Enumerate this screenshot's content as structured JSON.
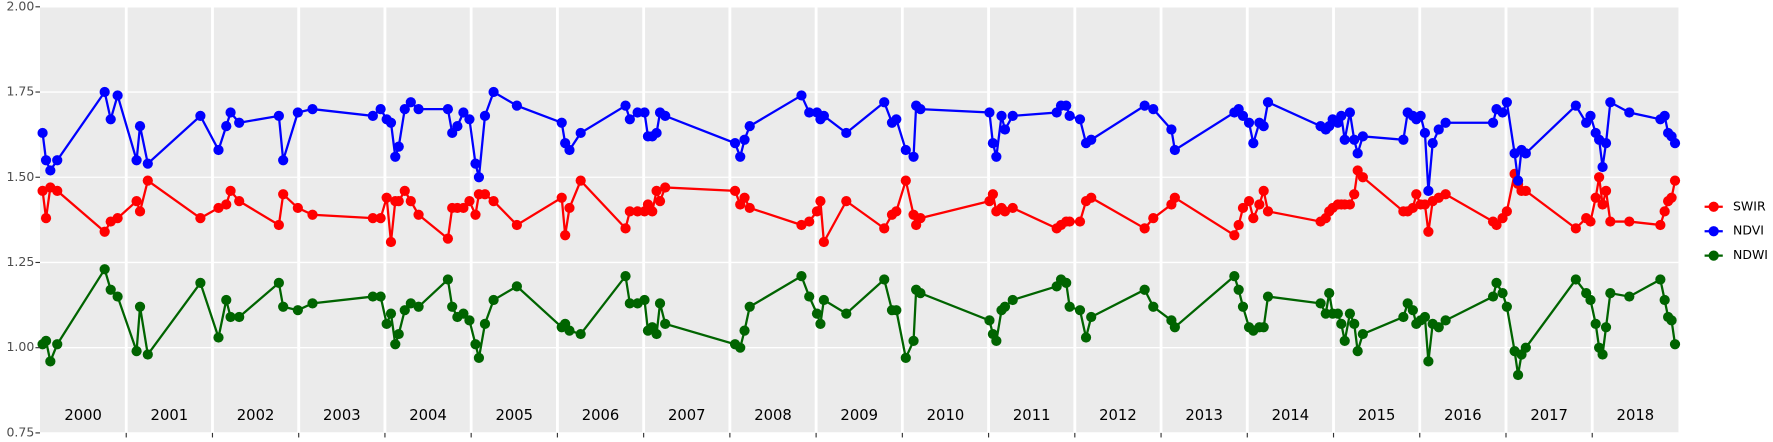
{
  "chart_data": {
    "type": "line",
    "x": [
      2000.03,
      2000.07,
      2000.12,
      2000.2,
      2000.75,
      2000.82,
      2000.9,
      2001.12,
      2001.16,
      2001.25,
      2001.86,
      2002.07,
      2002.16,
      2002.21,
      2002.31,
      2002.77,
      2002.82,
      2002.99,
      2003.16,
      2003.86,
      2003.95,
      2004.02,
      2004.07,
      2004.12,
      2004.16,
      2004.23,
      2004.3,
      2004.39,
      2004.73,
      2004.78,
      2004.84,
      2004.91,
      2004.98,
      2005.05,
      2005.09,
      2005.16,
      2005.26,
      2005.53,
      2006.05,
      2006.09,
      2006.14,
      2006.27,
      2006.79,
      2006.84,
      2006.93,
      2007.01,
      2007.05,
      2007.1,
      2007.15,
      2007.19,
      2007.25,
      2008.06,
      2008.12,
      2008.17,
      2008.23,
      2008.83,
      2008.92,
      2009.01,
      2009.05,
      2009.09,
      2009.35,
      2009.79,
      2009.88,
      2009.93,
      2010.04,
      2010.13,
      2010.16,
      2010.21,
      2011.01,
      2011.05,
      2011.09,
      2011.15,
      2011.19,
      2011.28,
      2011.79,
      2011.84,
      2011.9,
      2011.94,
      2012.06,
      2012.13,
      2012.19,
      2012.81,
      2012.91,
      2013.12,
      2013.16,
      2013.85,
      2013.9,
      2013.95,
      2014.02,
      2014.07,
      2014.14,
      2014.19,
      2014.24,
      2014.85,
      2014.91,
      2014.95,
      2014.99,
      2015.05,
      2015.09,
      2015.13,
      2015.19,
      2015.24,
      2015.28,
      2015.34,
      2015.81,
      2015.86,
      2015.92,
      2015.96,
      2016.01,
      2016.06,
      2016.1,
      2016.15,
      2016.22,
      2016.3,
      2016.85,
      2016.89,
      2016.96,
      2017.01,
      2017.1,
      2017.14,
      2017.18,
      2017.23,
      2017.81,
      2017.93,
      2017.98,
      2018.04,
      2018.08,
      2018.12,
      2018.16,
      2018.21,
      2018.43,
      2018.79,
      2018.84,
      2018.88,
      2018.92,
      2018.96
    ],
    "series": [
      {
        "name": "SWIR",
        "color": "#ff0000",
        "values": [
          1.46,
          1.38,
          1.47,
          1.46,
          1.34,
          1.37,
          1.38,
          1.43,
          1.4,
          1.49,
          1.38,
          1.41,
          1.42,
          1.46,
          1.43,
          1.36,
          1.45,
          1.41,
          1.39,
          1.38,
          1.38,
          1.44,
          1.31,
          1.43,
          1.43,
          1.46,
          1.43,
          1.39,
          1.32,
          1.41,
          1.41,
          1.41,
          1.43,
          1.39,
          1.45,
          1.45,
          1.43,
          1.36,
          1.44,
          1.33,
          1.41,
          1.49,
          1.35,
          1.4,
          1.4,
          1.4,
          1.42,
          1.4,
          1.46,
          1.43,
          1.47,
          1.46,
          1.42,
          1.44,
          1.41,
          1.36,
          1.37,
          1.4,
          1.43,
          1.31,
          1.43,
          1.35,
          1.39,
          1.4,
          1.49,
          1.39,
          1.36,
          1.38,
          1.43,
          1.45,
          1.4,
          1.41,
          1.4,
          1.41,
          1.35,
          1.36,
          1.37,
          1.37,
          1.37,
          1.43,
          1.44,
          1.35,
          1.38,
          1.42,
          1.44,
          1.33,
          1.36,
          1.41,
          1.43,
          1.38,
          1.42,
          1.46,
          1.4,
          1.37,
          1.38,
          1.4,
          1.41,
          1.42,
          1.42,
          1.42,
          1.42,
          1.45,
          1.52,
          1.5,
          1.4,
          1.4,
          1.41,
          1.45,
          1.42,
          1.42,
          1.34,
          1.43,
          1.44,
          1.45,
          1.37,
          1.36,
          1.38,
          1.4,
          1.51,
          1.48,
          1.46,
          1.46,
          1.35,
          1.38,
          1.37,
          1.44,
          1.5,
          1.42,
          1.46,
          1.37,
          1.37,
          1.36,
          1.4,
          1.43,
          1.44,
          1.49
        ]
      },
      {
        "name": "NDVI",
        "color": "#0000ff",
        "values": [
          1.63,
          1.55,
          1.52,
          1.55,
          1.75,
          1.67,
          1.74,
          1.55,
          1.65,
          1.54,
          1.68,
          1.58,
          1.65,
          1.69,
          1.66,
          1.68,
          1.55,
          1.69,
          1.7,
          1.68,
          1.7,
          1.67,
          1.66,
          1.56,
          1.59,
          1.7,
          1.72,
          1.7,
          1.7,
          1.63,
          1.65,
          1.69,
          1.67,
          1.54,
          1.5,
          1.68,
          1.75,
          1.71,
          1.66,
          1.6,
          1.58,
          1.63,
          1.71,
          1.67,
          1.69,
          1.69,
          1.62,
          1.62,
          1.63,
          1.69,
          1.68,
          1.6,
          1.56,
          1.61,
          1.65,
          1.74,
          1.69,
          1.69,
          1.67,
          1.68,
          1.63,
          1.72,
          1.66,
          1.67,
          1.58,
          1.56,
          1.71,
          1.7,
          1.69,
          1.6,
          1.56,
          1.68,
          1.64,
          1.68,
          1.69,
          1.71,
          1.71,
          1.68,
          1.67,
          1.6,
          1.61,
          1.71,
          1.7,
          1.64,
          1.58,
          1.69,
          1.7,
          1.68,
          1.66,
          1.6,
          1.66,
          1.65,
          1.72,
          1.65,
          1.64,
          1.65,
          1.67,
          1.66,
          1.68,
          1.61,
          1.69,
          1.61,
          1.57,
          1.62,
          1.61,
          1.69,
          1.68,
          1.67,
          1.68,
          1.63,
          1.46,
          1.6,
          1.64,
          1.66,
          1.66,
          1.7,
          1.69,
          1.72,
          1.57,
          1.49,
          1.58,
          1.57,
          1.71,
          1.66,
          1.68,
          1.63,
          1.61,
          1.53,
          1.6,
          1.72,
          1.69,
          1.67,
          1.68,
          1.63,
          1.62,
          1.6
        ]
      },
      {
        "name": "NDWI",
        "color": "#006400",
        "values": [
          1.01,
          1.02,
          0.96,
          1.01,
          1.23,
          1.17,
          1.15,
          0.99,
          1.12,
          0.98,
          1.19,
          1.03,
          1.14,
          1.09,
          1.09,
          1.19,
          1.12,
          1.11,
          1.13,
          1.15,
          1.15,
          1.07,
          1.1,
          1.01,
          1.04,
          1.11,
          1.13,
          1.12,
          1.2,
          1.12,
          1.09,
          1.1,
          1.08,
          1.01,
          0.97,
          1.07,
          1.14,
          1.18,
          1.06,
          1.07,
          1.05,
          1.04,
          1.21,
          1.13,
          1.13,
          1.14,
          1.05,
          1.06,
          1.04,
          1.13,
          1.07,
          1.01,
          1.0,
          1.05,
          1.12,
          1.21,
          1.15,
          1.1,
          1.07,
          1.14,
          1.1,
          1.2,
          1.11,
          1.11,
          0.97,
          1.02,
          1.17,
          1.16,
          1.08,
          1.04,
          1.02,
          1.11,
          1.12,
          1.14,
          1.18,
          1.2,
          1.19,
          1.12,
          1.11,
          1.03,
          1.09,
          1.17,
          1.12,
          1.08,
          1.06,
          1.21,
          1.17,
          1.12,
          1.06,
          1.05,
          1.06,
          1.06,
          1.15,
          1.13,
          1.1,
          1.16,
          1.1,
          1.1,
          1.07,
          1.02,
          1.1,
          1.07,
          0.99,
          1.04,
          1.09,
          1.13,
          1.11,
          1.07,
          1.08,
          1.09,
          0.96,
          1.07,
          1.06,
          1.08,
          1.15,
          1.19,
          1.16,
          1.12,
          0.99,
          0.92,
          0.98,
          1.0,
          1.2,
          1.16,
          1.14,
          1.07,
          1.0,
          0.98,
          1.06,
          1.16,
          1.15,
          1.2,
          1.14,
          1.09,
          1.08,
          1.01
        ]
      }
    ],
    "xlim": [
      2000,
      2019
    ],
    "xticks": [
      2001,
      2002,
      2003,
      2004,
      2005,
      2006,
      2007,
      2008,
      2009,
      2010,
      2011,
      2012,
      2013,
      2014,
      2015,
      2016,
      2017,
      2018
    ],
    "year_labels": [
      {
        "value": 2000.5,
        "label": "2000"
      },
      {
        "value": 2001.5,
        "label": "2001"
      },
      {
        "value": 2002.5,
        "label": "2002"
      },
      {
        "value": 2003.5,
        "label": "2003"
      },
      {
        "value": 2004.5,
        "label": "2004"
      },
      {
        "value": 2005.5,
        "label": "2005"
      },
      {
        "value": 2006.5,
        "label": "2006"
      },
      {
        "value": 2007.5,
        "label": "2007"
      },
      {
        "value": 2008.5,
        "label": "2008"
      },
      {
        "value": 2009.5,
        "label": "2009"
      },
      {
        "value": 2010.5,
        "label": "2010"
      },
      {
        "value": 2011.5,
        "label": "2011"
      },
      {
        "value": 2012.5,
        "label": "2012"
      },
      {
        "value": 2013.5,
        "label": "2013"
      },
      {
        "value": 2014.5,
        "label": "2014"
      },
      {
        "value": 2015.5,
        "label": "2015"
      },
      {
        "value": 2016.5,
        "label": "2016"
      },
      {
        "value": 2017.5,
        "label": "2017"
      },
      {
        "value": 2018.5,
        "label": "2018"
      }
    ],
    "ylim": [
      0.75,
      2.0
    ],
    "yticks": [
      {
        "value": 0.75,
        "label": "0.75"
      },
      {
        "value": 1,
        "label": "1.00"
      },
      1.25,
      {
        "value": 1.5,
        "label": "1.50"
      },
      1.75,
      {
        "value": 2,
        "label": "2.00"
      }
    ],
    "grid": true
  }
}
